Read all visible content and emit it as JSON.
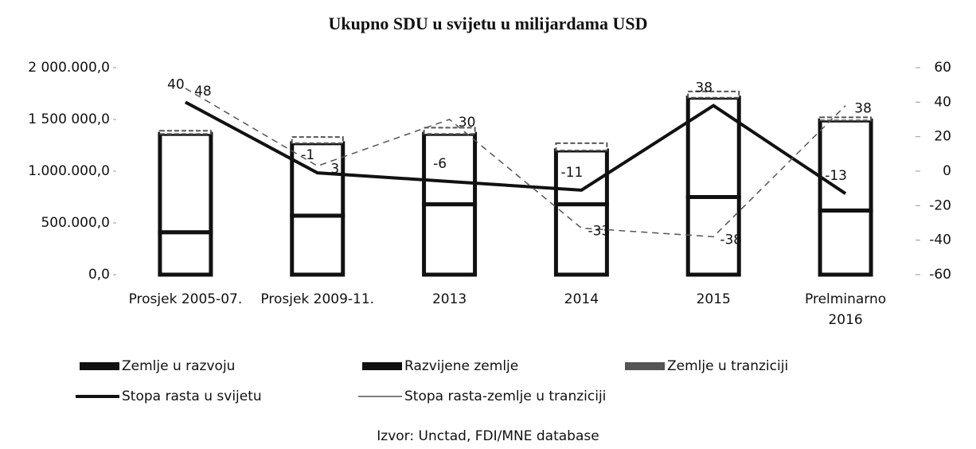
{
  "chart_data": {
    "type": "bar",
    "title": "Ukupno SDU u svijetu u milijardama USD",
    "source": "Izvor: Unctad, FDI/MNE database",
    "categories": [
      "Prosjek 2005-07.",
      "Prosjek 2009-11.",
      "2013",
      "2014",
      "2015",
      "Prelminarno 2016"
    ],
    "series": [
      {
        "name": "Zemlje u razvoju",
        "color": "#111111",
        "values": [
          410000,
          570000,
          680000,
          680000,
          750000,
          620000
        ]
      },
      {
        "name": "Razvijene zemlje",
        "color": "#111111",
        "values": [
          950000,
          700000,
          680000,
          520000,
          960000,
          870000
        ]
      },
      {
        "name": "Zemlje u tranziciji",
        "color": "#555555",
        "values": [
          30000,
          60000,
          60000,
          70000,
          60000,
          30000
        ]
      },
      {
        "name": "Stopa rasta u svijetu",
        "color": "#111111",
        "axis": "y2",
        "values": [
          40,
          -1,
          -6,
          -11,
          38,
          -13
        ]
      },
      {
        "name": "Stopa rasta-zemlje u tranziciji",
        "color": "#555555",
        "axis": "y2",
        "values": [
          48,
          3,
          30,
          -33,
          -38,
          38
        ]
      }
    ],
    "ylim": [
      0,
      2000000
    ],
    "yticks": [
      {
        "value": 0,
        "label": "0,0"
      },
      {
        "value": 500000,
        "label": "500.000,0"
      },
      {
        "value": 1000000,
        "label": "1.000.000,0"
      },
      {
        "value": 1500000,
        "label": "1 500 000,0"
      },
      {
        "value": 2000000,
        "label": "2 000.000,0"
      }
    ],
    "y2lim": [
      -60,
      60
    ],
    "y2ticks": [
      -60,
      -40,
      -20,
      0,
      20,
      40,
      60
    ]
  }
}
